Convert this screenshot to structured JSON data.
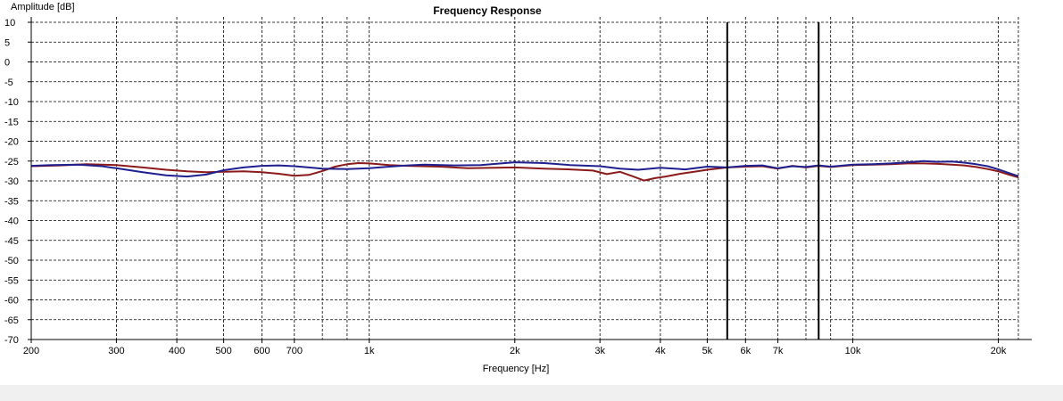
{
  "chart_data": {
    "type": "line",
    "title": "Frequency Response",
    "xlabel": "Frequency [Hz]",
    "ylabel": "Amplitude [dB]",
    "x_scale": "log",
    "xlim": [
      200,
      22000
    ],
    "ylim": [
      -70,
      10
    ],
    "y_ticks": [
      10,
      5,
      0,
      -5,
      -10,
      -15,
      -20,
      -25,
      -30,
      -35,
      -40,
      -45,
      -50,
      -55,
      -60,
      -65,
      -70
    ],
    "x_tick_labels": [
      {
        "value": 200,
        "label": "200"
      },
      {
        "value": 300,
        "label": "300"
      },
      {
        "value": 400,
        "label": "400"
      },
      {
        "value": 500,
        "label": "500"
      },
      {
        "value": 600,
        "label": "600"
      },
      {
        "value": 700,
        "label": "700"
      },
      {
        "value": 1000,
        "label": "1k"
      },
      {
        "value": 2000,
        "label": "2k"
      },
      {
        "value": 3000,
        "label": "3k"
      },
      {
        "value": 4000,
        "label": "4k"
      },
      {
        "value": 5000,
        "label": "5k"
      },
      {
        "value": 6000,
        "label": "6k"
      },
      {
        "value": 7000,
        "label": "7k"
      },
      {
        "value": 10000,
        "label": "10k"
      },
      {
        "value": 20000,
        "label": "20k"
      }
    ],
    "x_minor_gridlines": [
      800,
      900,
      8000,
      9000
    ],
    "grid": true,
    "grid_style": "dashed",
    "markers": [
      5500,
      8500
    ],
    "series": [
      {
        "color": "#1f1f8f",
        "points": [
          [
            200,
            -26.2
          ],
          [
            220,
            -26.0
          ],
          [
            250,
            -25.9
          ],
          [
            280,
            -26.3
          ],
          [
            300,
            -26.8
          ],
          [
            340,
            -27.8
          ],
          [
            380,
            -28.6
          ],
          [
            420,
            -28.9
          ],
          [
            460,
            -28.4
          ],
          [
            500,
            -27.3
          ],
          [
            550,
            -26.6
          ],
          [
            600,
            -26.2
          ],
          [
            650,
            -26.1
          ],
          [
            700,
            -26.3
          ],
          [
            750,
            -26.6
          ],
          [
            800,
            -26.9
          ],
          [
            900,
            -27.0
          ],
          [
            1000,
            -26.8
          ],
          [
            1100,
            -26.4
          ],
          [
            1200,
            -26.1
          ],
          [
            1300,
            -25.9
          ],
          [
            1500,
            -26.1
          ],
          [
            1700,
            -26.0
          ],
          [
            2000,
            -25.3
          ],
          [
            2300,
            -25.5
          ],
          [
            2600,
            -26.0
          ],
          [
            3000,
            -26.3
          ],
          [
            3300,
            -26.9
          ],
          [
            3600,
            -27.2
          ],
          [
            4000,
            -26.7
          ],
          [
            4500,
            -27.1
          ],
          [
            5000,
            -26.4
          ],
          [
            5500,
            -26.6
          ],
          [
            6000,
            -26.2
          ],
          [
            6500,
            -26.1
          ],
          [
            7000,
            -26.8
          ],
          [
            7500,
            -26.3
          ],
          [
            8000,
            -26.5
          ],
          [
            8500,
            -26.1
          ],
          [
            9000,
            -26.4
          ],
          [
            10000,
            -25.9
          ],
          [
            11000,
            -25.8
          ],
          [
            12000,
            -25.6
          ],
          [
            13000,
            -25.3
          ],
          [
            14000,
            -25.0
          ],
          [
            15000,
            -25.2
          ],
          [
            16000,
            -25.1
          ],
          [
            17000,
            -25.4
          ],
          [
            18000,
            -25.8
          ],
          [
            19000,
            -26.3
          ],
          [
            20000,
            -27.1
          ],
          [
            21000,
            -28.0
          ],
          [
            22000,
            -28.8
          ]
        ]
      },
      {
        "color": "#8b1a1a",
        "points": [
          [
            200,
            -26.3
          ],
          [
            230,
            -26.1
          ],
          [
            260,
            -25.8
          ],
          [
            300,
            -26.0
          ],
          [
            340,
            -26.6
          ],
          [
            380,
            -27.2
          ],
          [
            420,
            -27.6
          ],
          [
            460,
            -27.8
          ],
          [
            500,
            -27.7
          ],
          [
            550,
            -27.6
          ],
          [
            600,
            -27.8
          ],
          [
            650,
            -28.2
          ],
          [
            700,
            -28.7
          ],
          [
            750,
            -28.5
          ],
          [
            800,
            -27.5
          ],
          [
            850,
            -26.4
          ],
          [
            900,
            -25.8
          ],
          [
            950,
            -25.5
          ],
          [
            1000,
            -25.6
          ],
          [
            1100,
            -26.0
          ],
          [
            1200,
            -26.2
          ],
          [
            1400,
            -26.4
          ],
          [
            1600,
            -26.8
          ],
          [
            2000,
            -26.6
          ],
          [
            2300,
            -26.9
          ],
          [
            2600,
            -27.1
          ],
          [
            2900,
            -27.4
          ],
          [
            3100,
            -28.3
          ],
          [
            3300,
            -27.7
          ],
          [
            3500,
            -28.8
          ],
          [
            3700,
            -29.9
          ],
          [
            3900,
            -29.3
          ],
          [
            4100,
            -28.9
          ],
          [
            4400,
            -28.2
          ],
          [
            4700,
            -27.7
          ],
          [
            5000,
            -27.2
          ],
          [
            5500,
            -26.6
          ],
          [
            6000,
            -26.4
          ],
          [
            6500,
            -26.3
          ],
          [
            7000,
            -26.9
          ],
          [
            7500,
            -26.2
          ],
          [
            8000,
            -26.6
          ],
          [
            8500,
            -26.2
          ],
          [
            9000,
            -26.5
          ],
          [
            10000,
            -26.0
          ],
          [
            11000,
            -25.9
          ],
          [
            12000,
            -25.8
          ],
          [
            13000,
            -25.6
          ],
          [
            14000,
            -25.6
          ],
          [
            15000,
            -25.7
          ],
          [
            16000,
            -25.9
          ],
          [
            17000,
            -26.1
          ],
          [
            18000,
            -26.5
          ],
          [
            19000,
            -27.0
          ],
          [
            20000,
            -27.6
          ],
          [
            21000,
            -28.4
          ],
          [
            22000,
            -29.1
          ]
        ]
      }
    ]
  }
}
